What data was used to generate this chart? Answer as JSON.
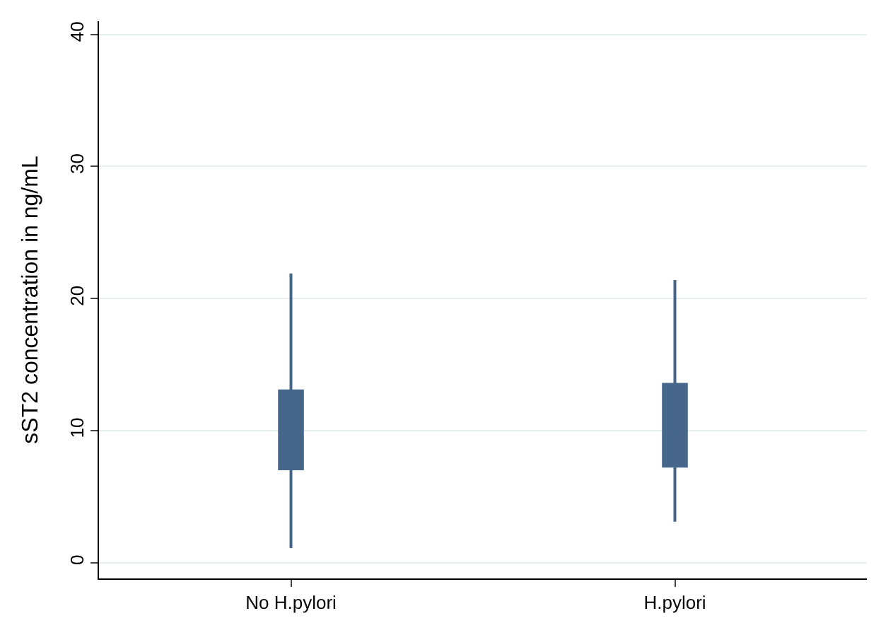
{
  "chart_data": {
    "type": "box",
    "ylabel": "sST2 concentration in ng/mL",
    "categories": [
      "No H.pylori",
      "H.pylori"
    ],
    "boxes": [
      {
        "low": 1.1,
        "q1": 7.1,
        "median": 9.6,
        "q3": 13.0,
        "high": 21.9
      },
      {
        "low": 3.1,
        "q1": 7.3,
        "median": 9.6,
        "q3": 13.5,
        "high": 21.4
      }
    ],
    "color": "#46668a",
    "ylim": [
      -1.2,
      41
    ],
    "yticks": [
      0,
      10,
      20,
      30,
      40
    ],
    "grid": "y"
  }
}
